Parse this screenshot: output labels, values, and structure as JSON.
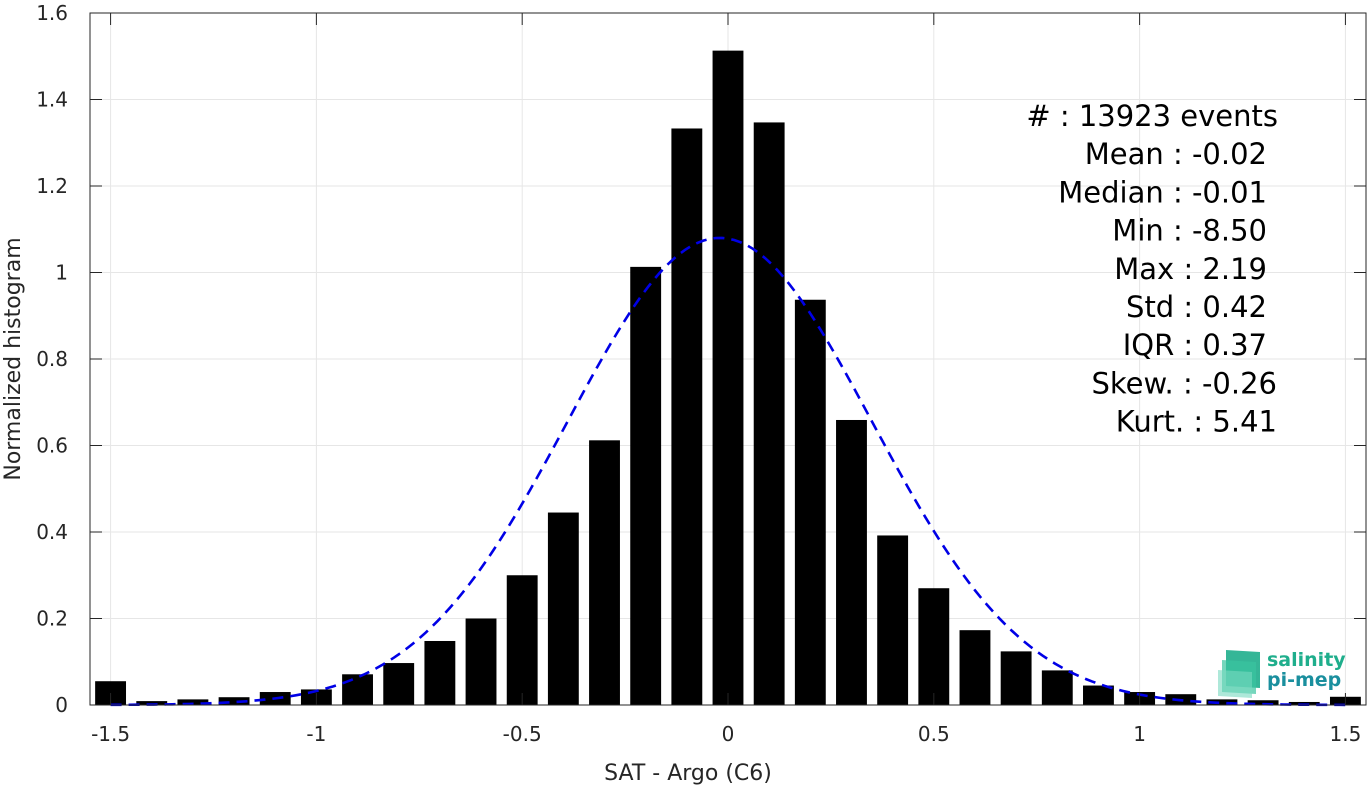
{
  "chart_data": {
    "type": "bar",
    "xlabel": "SAT - Argo (C6)",
    "ylabel": "Normalized histogram",
    "xlim": [
      -1.55,
      1.55
    ],
    "ylim": [
      0,
      1.6
    ],
    "grid": true,
    "xticks": [
      -1.5,
      -1,
      -0.5,
      0,
      0.5,
      1,
      1.5
    ],
    "xtick_labels": [
      "-1.5",
      "-1",
      "-0.5",
      "0",
      "0.5",
      "1",
      "1.5"
    ],
    "yticks": [
      0,
      0.2,
      0.4,
      0.6,
      0.8,
      1,
      1.2,
      1.4,
      1.6
    ],
    "ytick_labels": [
      "0",
      "0.2",
      "0.4",
      "0.6",
      "0.8",
      "1",
      "1.2",
      "1.4",
      "1.6"
    ],
    "bar_color": "#000000",
    "bin_width": 0.1,
    "x": [
      -1.5,
      -1.4,
      -1.3,
      -1.2,
      -1.1,
      -1.0,
      -0.9,
      -0.8,
      -0.7,
      -0.6,
      -0.5,
      -0.4,
      -0.3,
      -0.2,
      -0.1,
      0.0,
      0.1,
      0.2,
      0.3,
      0.4,
      0.5,
      0.6,
      0.7,
      0.8,
      0.9,
      1.0,
      1.1,
      1.2,
      1.3,
      1.4,
      1.5
    ],
    "values": [
      0.055,
      0.009,
      0.013,
      0.018,
      0.03,
      0.036,
      0.071,
      0.097,
      0.148,
      0.2,
      0.3,
      0.445,
      0.612,
      1.013,
      1.333,
      1.513,
      1.347,
      0.937,
      0.659,
      0.392,
      0.27,
      0.173,
      0.124,
      0.08,
      0.045,
      0.03,
      0.025,
      0.013,
      0.011,
      0.007,
      0.019
    ],
    "fit": {
      "type": "gaussian",
      "mean": -0.02,
      "std": 0.37,
      "peak": 1.08,
      "color": "#0000e6",
      "style": "dashed"
    }
  },
  "stats": [
    {
      "label": "#  ",
      "value": ": 13923 events"
    },
    {
      "label": "Mean ",
      "value": ": -0.02"
    },
    {
      "label": "Median ",
      "value": ": -0.01"
    },
    {
      "label": "Min ",
      "value": ": -8.50"
    },
    {
      "label": "Max ",
      "value": ": 2.19"
    },
    {
      "label": "Std ",
      "value": ": 0.42"
    },
    {
      "label": "IQR ",
      "value": ": 0.37"
    },
    {
      "label": "Skew. ",
      "value": ": -0.26"
    },
    {
      "label": "Kurt. ",
      "value": ": 5.41"
    }
  ],
  "logo": {
    "line1": "salinity",
    "line2": "pi-mep",
    "color1": "#1fae8c",
    "color2": "#1a8f9e"
  }
}
